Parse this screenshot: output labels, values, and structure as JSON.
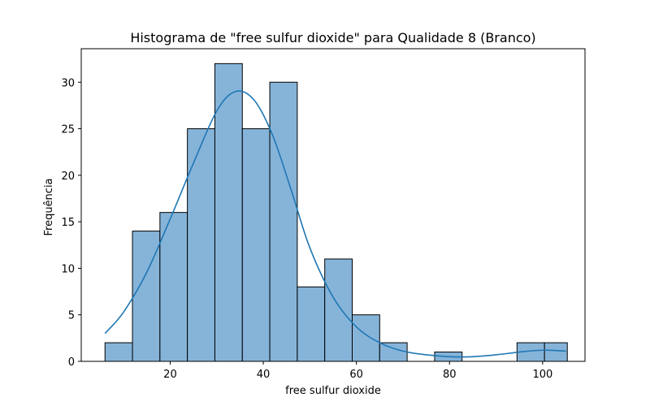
{
  "chart_data": {
    "type": "bar",
    "title": "Histograma de \"free sulfur dioxide\" para Qualidade 8 (Branco)",
    "xlabel": "free sulfur dioxide",
    "ylabel": "Frequência",
    "xlim": [
      0.9,
      109.1
    ],
    "ylim": [
      0,
      33.6
    ],
    "xticks": [
      20,
      40,
      60,
      80,
      100
    ],
    "yticks": [
      0,
      5,
      10,
      15,
      20,
      25,
      30
    ],
    "bin_edges": [
      6,
      11.9,
      17.8,
      23.7,
      29.6,
      35.5,
      41.4,
      47.3,
      53.2,
      59.1,
      65,
      70.9,
      76.8,
      82.7,
      88.6,
      94.5,
      100.4,
      105.3
    ],
    "values": [
      2,
      14,
      16,
      25,
      32,
      25,
      30,
      8,
      11,
      5,
      2,
      0,
      1,
      0,
      0,
      2,
      2
    ],
    "kde": {
      "x": [
        6,
        10,
        15,
        20,
        25,
        30,
        34,
        38,
        42,
        46,
        50,
        55,
        60,
        65,
        70,
        75,
        80,
        85,
        90,
        95,
        100,
        105
      ],
      "y": [
        3.0,
        5.3,
        9.6,
        15.3,
        21.3,
        26.9,
        29.0,
        28.1,
        24.3,
        18.4,
        12.2,
        6.9,
        3.7,
        2.0,
        1.1,
        0.7,
        0.5,
        0.5,
        0.7,
        1.0,
        1.2,
        1.1
      ]
    },
    "bar_color": "#86b4d9",
    "edge_color": "#000000",
    "line_color": "#1f77b4",
    "grid": false,
    "legend": "none"
  }
}
